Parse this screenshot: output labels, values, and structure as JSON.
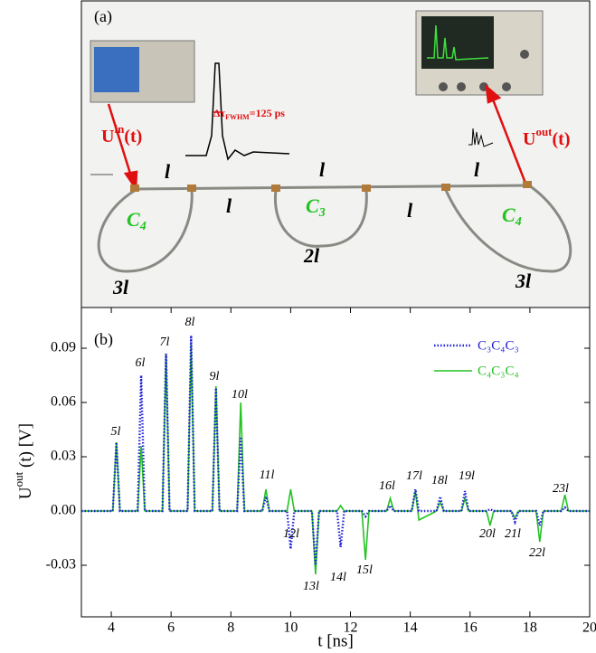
{
  "panel_a": {
    "label": "(a)",
    "input_label": {
      "base": "U",
      "sup": "in",
      "rest": "(t)"
    },
    "output_label": {
      "base": "U",
      "sup": "out",
      "rest": "(t)"
    },
    "pulse_width": {
      "base": "Δτ",
      "sub": "FWHM",
      "rest": "=125 ps"
    },
    "loops": [
      {
        "base": "C",
        "sub": "4",
        "length": "3l"
      },
      {
        "base": "C",
        "sub": "3",
        "length": "2l"
      },
      {
        "base": "C",
        "sub": "4",
        "length": "3l"
      }
    ],
    "segments": [
      "l",
      "l",
      "l",
      "l",
      "l"
    ]
  },
  "chart_data": {
    "type": "line",
    "panel_label": "(b)",
    "x_label": "t [ns]",
    "y_label": {
      "base": "U",
      "sup": "out",
      "rest": " (t) [V]"
    },
    "x": [
      3,
      4.05,
      4.17,
      4.29,
      4.88,
      5.0,
      5.12,
      5.71,
      5.83,
      5.95,
      6.55,
      6.67,
      6.79,
      7.38,
      7.5,
      7.62,
      8.21,
      8.33,
      8.45,
      9.05,
      9.17,
      9.29,
      9.88,
      10.0,
      10.12,
      10.71,
      10.83,
      10.95,
      11.55,
      11.67,
      11.79,
      12.38,
      12.5,
      12.62,
      13.21,
      13.33,
      13.45,
      14.05,
      14.17,
      14.29,
      14.88,
      15.0,
      15.12,
      15.71,
      15.83,
      15.95,
      16.55,
      16.67,
      16.79,
      17.38,
      17.5,
      17.62,
      18.21,
      18.33,
      18.45,
      19.05,
      19.17,
      19.29,
      20
    ],
    "series": [
      {
        "name": "C₃C₄C₃",
        "color": "#1f1fd6",
        "line_style": "dotted",
        "values": [
          0,
          0,
          0.038,
          0,
          0,
          0.075,
          0,
          0,
          0.087,
          0,
          0,
          0.097,
          0,
          0,
          0.068,
          0,
          0,
          0.041,
          0,
          0,
          0.008,
          0,
          0,
          -0.021,
          0,
          0,
          -0.03,
          0,
          0,
          -0.02,
          0,
          0,
          -0.003,
          0,
          0,
          0.003,
          0,
          0,
          0.012,
          0,
          0,
          0.008,
          0,
          0,
          0.011,
          0,
          0,
          0.001,
          0,
          0,
          -0.006,
          0,
          0,
          -0.008,
          0,
          0,
          0.002,
          0,
          0
        ]
      },
      {
        "name": "C₄C₃C₄",
        "color": "#22c322",
        "line_style": "solid",
        "values": [
          0,
          0,
          0.038,
          0,
          0,
          0.036,
          0,
          0,
          0.087,
          0,
          0,
          0.092,
          0,
          0,
          0.069,
          0,
          0,
          0.06,
          0,
          0,
          0.012,
          0,
          0,
          0.012,
          0,
          0,
          -0.035,
          0,
          0,
          0.003,
          0,
          0,
          -0.027,
          0,
          0,
          0.007,
          0,
          0,
          0.011,
          -0.005,
          0,
          0.005,
          0,
          0,
          0.007,
          0,
          0,
          -0.008,
          0,
          0,
          -0.004,
          0,
          0,
          -0.017,
          0,
          0,
          0.009,
          0,
          0
        ]
      }
    ],
    "annotations": [
      "5l",
      "6l",
      "7l",
      "8l",
      "9l",
      "10l",
      "11l",
      "12l",
      "13l",
      "14l",
      "15l",
      "16l",
      "17l",
      "18l",
      "19l",
      "20l",
      "21l",
      "22l",
      "23l"
    ],
    "xlim": [
      3,
      20
    ],
    "xticks": [
      4,
      6,
      8,
      10,
      12,
      14,
      16,
      18,
      20
    ],
    "ylim": [
      -0.0585,
      0.1125
    ],
    "yticks": [
      -0.03,
      {
        "value": 0,
        "label": "0.00"
      },
      0.03,
      0.06,
      0.09
    ],
    "grid": false,
    "legend": "top-right"
  }
}
